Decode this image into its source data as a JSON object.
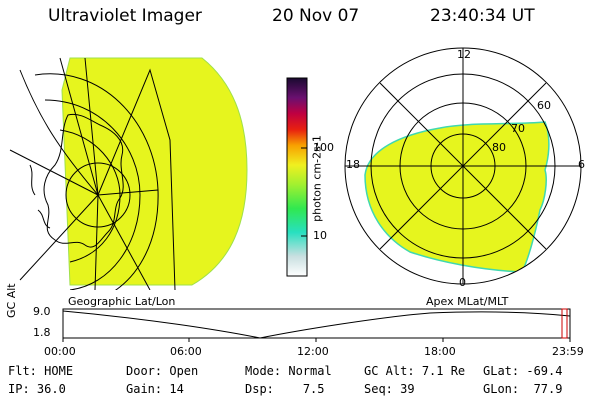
{
  "header": {
    "instrument": "Ultraviolet Imager",
    "date": "20 Nov 07",
    "time": "23:40:34 UT"
  },
  "colorbar": {
    "unit_label": "photon cm-2s-1",
    "tick_labels": [
      "100",
      "10"
    ]
  },
  "left_panel": {
    "caption": "Geographic Lat/Lon",
    "fill_color": "#e6f51e"
  },
  "right_panel": {
    "caption": "Apex MLat/MLT",
    "mlt_labels": {
      "top": "12",
      "right": "6",
      "bottom": "0",
      "left": "18"
    },
    "mlat_labels": [
      "60",
      "70",
      "80"
    ],
    "fill_color": "#e6f51e"
  },
  "timeline": {
    "axis_label": "GC Alt",
    "y_labels": [
      "9.0",
      "1.8"
    ],
    "x_labels": [
      "00:00",
      "06:00",
      "12:00",
      "18:00",
      "23:59"
    ]
  },
  "status": {
    "flt_label": "Flt:",
    "flt_value": "HOME",
    "ip_label": "IP:",
    "ip_value": "36.0",
    "door_label": "Door:",
    "door_value": "Open",
    "gain_label": "Gain:",
    "gain_value": "14",
    "mode_label": "Mode:",
    "mode_value": "Normal",
    "dsp_label": "Dsp:",
    "dsp_value": "7.5",
    "gcalt_label": "GC Alt:",
    "gcalt_value": "7.1 Re",
    "seq_label": "Seq:",
    "seq_value": "39",
    "glat_label": "GLat:",
    "glat_value": "-69.4",
    "glon_label": "GLon:",
    "glon_value": "77.9"
  }
}
